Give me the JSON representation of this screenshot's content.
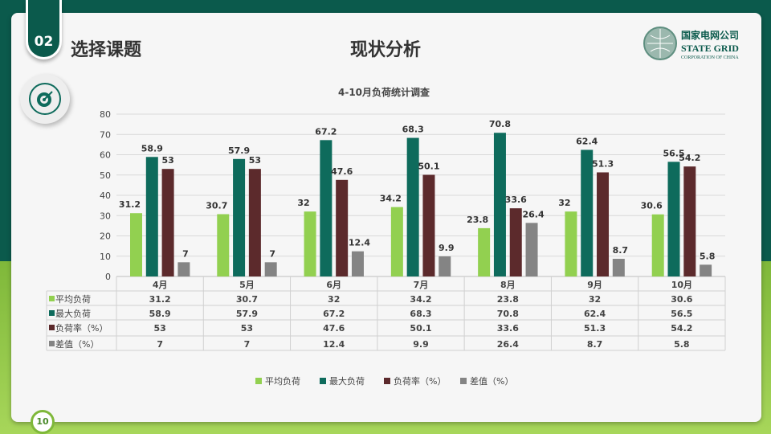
{
  "header": {
    "section_number": "02",
    "section_title": "选择课题",
    "page_title": "现状分析"
  },
  "logo": {
    "cn": "国家电网公司",
    "en1": "STATE GRID",
    "en2": "CORPORATION OF CHINA"
  },
  "page_number": "10",
  "colors": {
    "avg": "#92d050",
    "max": "#0e6b5c",
    "rate": "#5c2a2c",
    "diff": "#848484",
    "brand": "#0b5a4c"
  },
  "chart_data": {
    "type": "bar",
    "title": "4-10月负荷统计调查",
    "categories": [
      "4月",
      "5月",
      "6月",
      "7月",
      "8月",
      "9月",
      "10月"
    ],
    "ylim": [
      0,
      80
    ],
    "yticks": [
      0,
      10,
      20,
      30,
      40,
      50,
      60,
      70,
      80
    ],
    "grid": true,
    "legend": "bottom",
    "data_table": true,
    "series": [
      {
        "name": "平均负荷",
        "values": [
          31.2,
          30.7,
          32,
          34.2,
          23.8,
          32,
          30.6
        ]
      },
      {
        "name": "最大负荷",
        "values": [
          58.9,
          57.9,
          67.2,
          68.3,
          70.8,
          62.4,
          56.5
        ]
      },
      {
        "name": "负荷率（%）",
        "values": [
          53,
          53,
          47.6,
          50.1,
          33.6,
          51.3,
          54.2
        ]
      },
      {
        "name": "差值（%）",
        "values": [
          7,
          7,
          12.4,
          9.9,
          26.4,
          8.7,
          5.8
        ]
      }
    ]
  }
}
